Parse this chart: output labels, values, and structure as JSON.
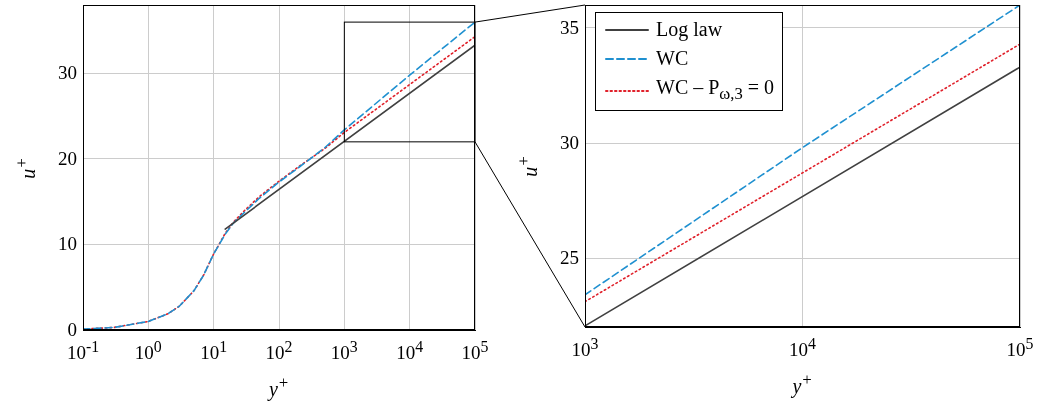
{
  "chart_data": [
    {
      "type": "line",
      "xlabel": "y$^{+}$",
      "ylabel": "u$^{+}$",
      "log": "x",
      "grid": true,
      "legend": false,
      "marker": "none",
      "xlim": [
        0.1,
        100000
      ],
      "xticks": [
        {
          "value": 0.1,
          "label": "10$^{-1}$"
        },
        {
          "value": 1,
          "label": "10$^{0}$"
        },
        {
          "value": 10,
          "label": "10$^{1}$"
        },
        {
          "value": 100,
          "label": "10$^{2}$"
        },
        {
          "value": 1000,
          "label": "10$^{3}$"
        },
        {
          "value": 10000,
          "label": "10$^{4}$"
        },
        {
          "value": 100000,
          "label": "10$^{5}$"
        }
      ],
      "ylim": [
        0,
        38
      ],
      "yticks": [
        0,
        10,
        20,
        30
      ],
      "series": [
        {
          "color": "#404040",
          "line_style": "solid",
          "x": [
            15,
            100000
          ],
          "values": [
            11.8,
            33.3
          ]
        },
        {
          "color": "#1f90d0",
          "line_style": "dashed",
          "x": [
            0.1,
            0.3,
            1,
            2,
            3,
            5,
            7,
            10,
            15,
            20,
            30,
            50,
            100,
            200,
            500,
            1000,
            10000,
            100000
          ],
          "values": [
            0.1,
            0.3,
            1.0,
            1.9,
            2.8,
            4.6,
            6.4,
            8.9,
            11.2,
            12.5,
            13.8,
            15.4,
            17.3,
            19.0,
            21.3,
            23.4,
            29.8,
            36.0
          ]
        },
        {
          "color": "#e0202a",
          "line_style": "dotted",
          "x": [
            0.1,
            0.3,
            1,
            2,
            3,
            5,
            7,
            10,
            15,
            20,
            30,
            50,
            100,
            200,
            500,
            1000,
            10000,
            100000
          ],
          "values": [
            0.1,
            0.3,
            1.0,
            1.9,
            2.8,
            4.6,
            6.4,
            8.9,
            11.3,
            12.6,
            14.0,
            15.6,
            17.4,
            19.1,
            21.2,
            23.1,
            28.7,
            34.3
          ]
        }
      ]
    },
    {
      "type": "line",
      "xlabel": "y$^{+}$",
      "ylabel": "u$^{+}$",
      "log": "x",
      "grid": true,
      "legend": "top left",
      "marker": "none",
      "xlim": [
        1000,
        100000
      ],
      "xticks": [
        {
          "value": 1000,
          "label": "10$^{3}$"
        },
        {
          "value": 10000,
          "label": "10$^{4}$"
        },
        {
          "value": 100000,
          "label": "10$^{5}$"
        }
      ],
      "ylim": [
        22,
        36
      ],
      "yticks": [
        25,
        30,
        35
      ],
      "series": [
        {
          "name": "Log law",
          "color": "#404040",
          "line_style": "solid",
          "x": [
            1000,
            100000
          ],
          "values": [
            22.05,
            33.3
          ]
        },
        {
          "name": "WC",
          "color": "#1f90d0",
          "line_style": "dashed",
          "x": [
            1000,
            10000,
            100000
          ],
          "values": [
            23.4,
            29.8,
            36.0
          ]
        },
        {
          "name": "WC – P$_{ω,3}$ = 0",
          "color": "#e0202a",
          "line_style": "dotted",
          "x": [
            1000,
            10000,
            100000
          ],
          "values": [
            23.1,
            28.7,
            34.3
          ]
        }
      ]
    }
  ]
}
